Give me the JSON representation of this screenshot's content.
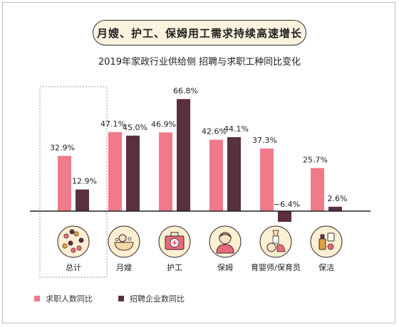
{
  "title": "月嫂、护工、保姆用工需求持续高速增长",
  "subtitle": "2019年家政行业供给侧 招聘与求职工种同比变化",
  "colors": {
    "pink": "#f07a8a",
    "dark": "#5a2f40",
    "icon_bg": "#fcefd2"
  },
  "legend": [
    {
      "label": "求职人数同比",
      "color": "#f07a8a"
    },
    {
      "label": "招聘企业数同比",
      "color": "#5a2f40"
    }
  ],
  "chart_data": {
    "type": "bar",
    "title": "2019年家政行业供给侧 招聘与求职工种同比变化",
    "categories": [
      "总计",
      "月嫂",
      "护工",
      "保姆",
      "育婴师/保育员",
      "保洁"
    ],
    "series": [
      {
        "name": "求职人数同比",
        "values": [
          32.9,
          47.1,
          46.9,
          42.6,
          37.3,
          25.7
        ],
        "labels": [
          "32.9%",
          "47.1%",
          "46.9%",
          "42.6%",
          "37.3%",
          "25.7%"
        ]
      },
      {
        "name": "招聘企业数同比",
        "values": [
          12.9,
          45.0,
          66.8,
          44.1,
          -6.4,
          2.6
        ],
        "labels": [
          "12.9%",
          "45.0%",
          "66.8%",
          "44.1%",
          "−6.4%",
          "2.6%"
        ]
      }
    ],
    "icons": [
      "cluster-icon",
      "bathtub-baby-icon",
      "first-aid-kit-icon",
      "nanny-icon",
      "baby-care-icon",
      "cleaning-icon"
    ],
    "highlighted_category": "总计",
    "ylim": [
      -10,
      70
    ],
    "grid": false,
    "legend_position": "bottom-left"
  }
}
